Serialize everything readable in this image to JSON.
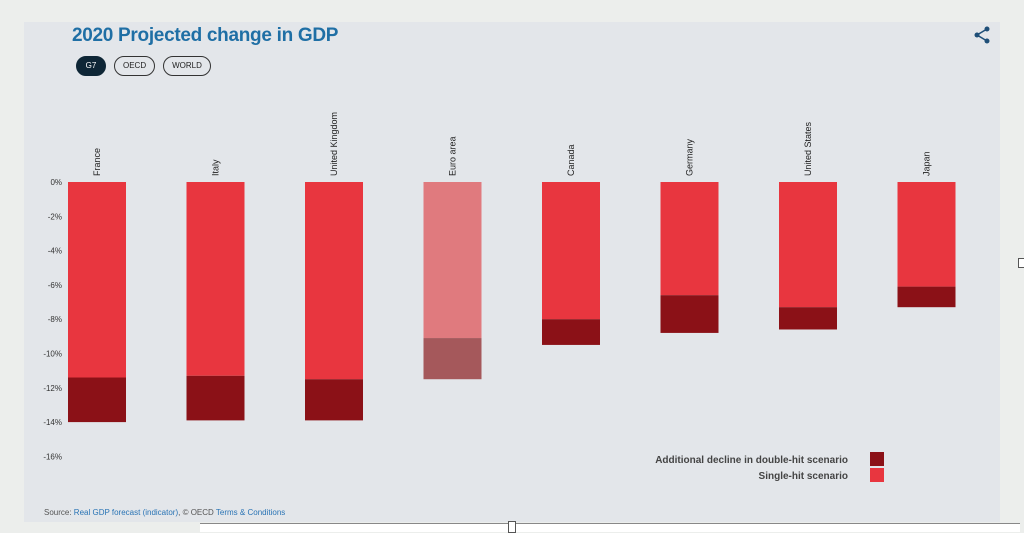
{
  "title": "2020 Projected change in GDP",
  "toggles": [
    {
      "label": "G7",
      "active": true
    },
    {
      "label": "OECD",
      "active": false
    },
    {
      "label": "WORLD",
      "active": false
    }
  ],
  "share_icon": "share-icon",
  "footer": {
    "source_prefix": "Source: ",
    "source_link": "Real GDP forecast (indicator)",
    "copyright": ", © OECD ",
    "terms_link": "Terms & Conditions"
  },
  "colors": {
    "single_hit": "#e8363f",
    "double_hit": "#8b1117",
    "highlight_single": "#e07a7e",
    "highlight_double": "#a5585b"
  },
  "chart_data": {
    "type": "bar",
    "stacked": true,
    "categories": [
      "France",
      "Italy",
      "United Kingdom",
      "Euro area",
      "Canada",
      "Germany",
      "United States",
      "Japan"
    ],
    "highlighted": "Euro area",
    "series": [
      {
        "name": "Single-hit scenario",
        "values": [
          -11.4,
          -11.3,
          -11.5,
          -9.1,
          -8.0,
          -6.6,
          -7.3,
          -6.1
        ]
      },
      {
        "name": "Additional decline in double-hit scenario",
        "values": [
          -2.6,
          -2.6,
          -2.4,
          -2.4,
          -1.5,
          -2.2,
          -1.3,
          -1.2
        ]
      }
    ],
    "ylim": [
      -16,
      0
    ],
    "yticks": [
      "0%",
      "-2%",
      "-4%",
      "-6%",
      "-8%",
      "-10%",
      "-12%",
      "-14%",
      "-16%"
    ],
    "legend": [
      "Additional decline in double-hit scenario",
      "Single-hit scenario"
    ],
    "legend_position": "bottom-right"
  }
}
